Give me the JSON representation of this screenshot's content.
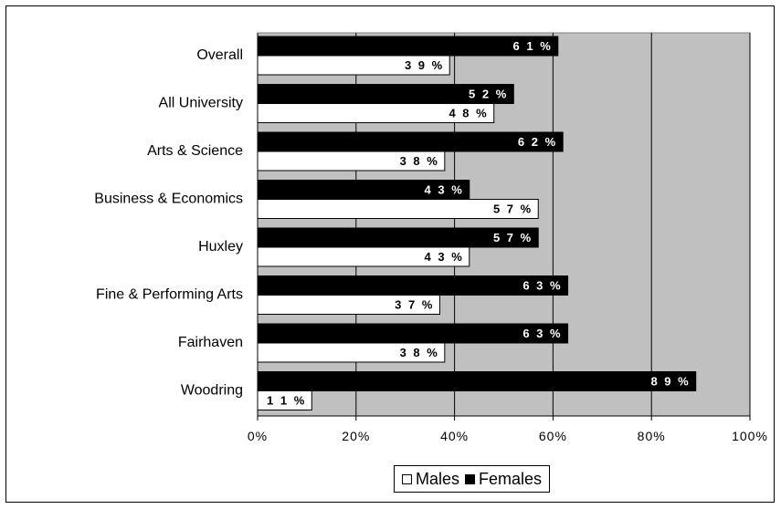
{
  "chart_data": {
    "type": "bar",
    "orientation": "horizontal",
    "categories": [
      "Overall",
      "All University",
      "Arts & Science",
      "Business & Economics",
      "Huxley",
      "Fine & Performing Arts",
      "Fairhaven",
      "Woodring"
    ],
    "series": [
      {
        "name": "Females",
        "color": "#000000",
        "values": [
          61,
          52,
          62,
          43,
          57,
          63,
          63,
          89
        ],
        "labels": [
          "6 1 %",
          "5 2 %",
          "6 2 %",
          "4 3 %",
          "5 7 %",
          "6 3 %",
          "6 3 %",
          "8 9 %"
        ]
      },
      {
        "name": "Males",
        "color": "#ffffff",
        "values": [
          39,
          48,
          38,
          57,
          43,
          37,
          38,
          11
        ],
        "labels": [
          "3 9 %",
          "4 8 %",
          "3 8 %",
          "5 7 %",
          "4 3 %",
          "3 7 %",
          "3 8 %",
          "1 1 %"
        ]
      }
    ],
    "xlim": [
      0,
      100
    ],
    "ticks": [
      "0%",
      "20%",
      "40%",
      "60%",
      "80%",
      "100%"
    ],
    "tick_values": [
      0,
      20,
      40,
      60,
      80,
      100
    ],
    "plot_background": "#c0c0c0",
    "grid": true,
    "legend_placement": "bottom",
    "title": "",
    "xlabel": "",
    "ylabel": ""
  },
  "legend": {
    "males_label": "Males",
    "females_label": "Females"
  }
}
